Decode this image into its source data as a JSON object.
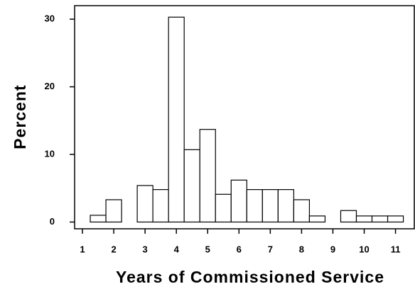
{
  "chart_data": {
    "type": "histogram",
    "xlabel": "Years of Commissioned Service",
    "ylabel": "Percent",
    "bins": [
      1.25,
      1.75,
      2.25,
      2.75,
      3.25,
      3.75,
      4.25,
      4.75,
      5.25,
      5.75,
      6.25,
      6.75,
      7.25,
      7.75,
      8.25,
      8.75,
      9.25,
      9.75,
      10.25,
      10.75,
      11.25
    ],
    "counts": [
      1,
      3.3,
      0,
      5.4,
      4.8,
      30.3,
      10.7,
      13.7,
      4.1,
      6.2,
      4.8,
      4.8,
      4.8,
      3.3,
      0.9,
      0,
      1.7,
      0.9,
      0.9,
      0.9
    ],
    "color": "#ffffff",
    "xlim": [
      0.75,
      11.6
    ],
    "ylim": [
      -1,
      32
    ],
    "xticks": [
      1,
      2,
      3,
      4,
      5,
      6,
      7,
      8,
      9,
      10,
      11
    ],
    "yticks": [
      0,
      10,
      20,
      30
    ]
  }
}
